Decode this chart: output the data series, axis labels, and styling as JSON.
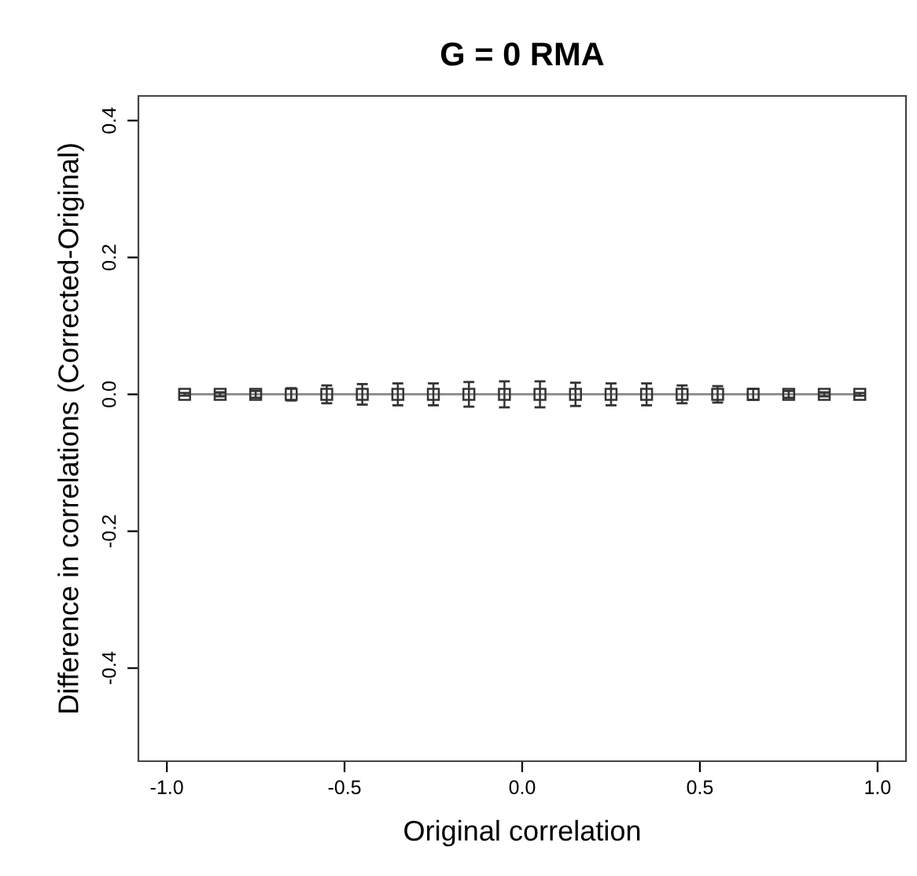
{
  "chart_data": {
    "type": "line",
    "title": "G = 0 RMA",
    "xlabel": "Original correlation",
    "ylabel": "Difference in correlations (Corrected-Original)",
    "x": [
      -0.95,
      -0.85,
      -0.75,
      -0.65,
      -0.55,
      -0.45,
      -0.35,
      -0.25,
      -0.15,
      -0.05,
      0.05,
      0.15,
      0.25,
      0.35,
      0.45,
      0.55,
      0.65,
      0.75,
      0.85,
      0.95
    ],
    "series": [
      {
        "color": "#333333",
        "values": [
          0,
          0,
          0,
          0,
          0,
          0,
          0,
          0,
          0,
          0,
          0,
          0,
          0,
          0,
          0,
          0,
          0,
          0,
          0,
          0
        ],
        "errors": [
          0.002,
          0.003,
          0.005,
          0.009,
          0.013,
          0.015,
          0.016,
          0.016,
          0.018,
          0.019,
          0.019,
          0.017,
          0.016,
          0.016,
          0.013,
          0.012,
          0.008,
          0.005,
          0.003,
          0.002
        ]
      }
    ],
    "xlim": [
      -1.08,
      1.08
    ],
    "ylim": [
      -0.536,
      0.436
    ],
    "xticks": [
      {
        "value": -1,
        "label": "-1.0"
      },
      {
        "value": -0.5,
        "label": "-0.5"
      },
      {
        "value": 0,
        "label": "0.0"
      },
      {
        "value": 0.5,
        "label": "0.5"
      },
      {
        "value": 1,
        "label": "1.0"
      }
    ],
    "yticks": [
      {
        "value": -0.4,
        "label": "-0.4"
      },
      {
        "value": -0.2,
        "label": "-0.2"
      },
      {
        "value": 0,
        "label": "0.0"
      },
      {
        "value": 0.2,
        "label": "0.2"
      },
      {
        "value": 0.4,
        "label": "0.4"
      }
    ],
    "marker": "square",
    "grid": false,
    "legend": false
  }
}
